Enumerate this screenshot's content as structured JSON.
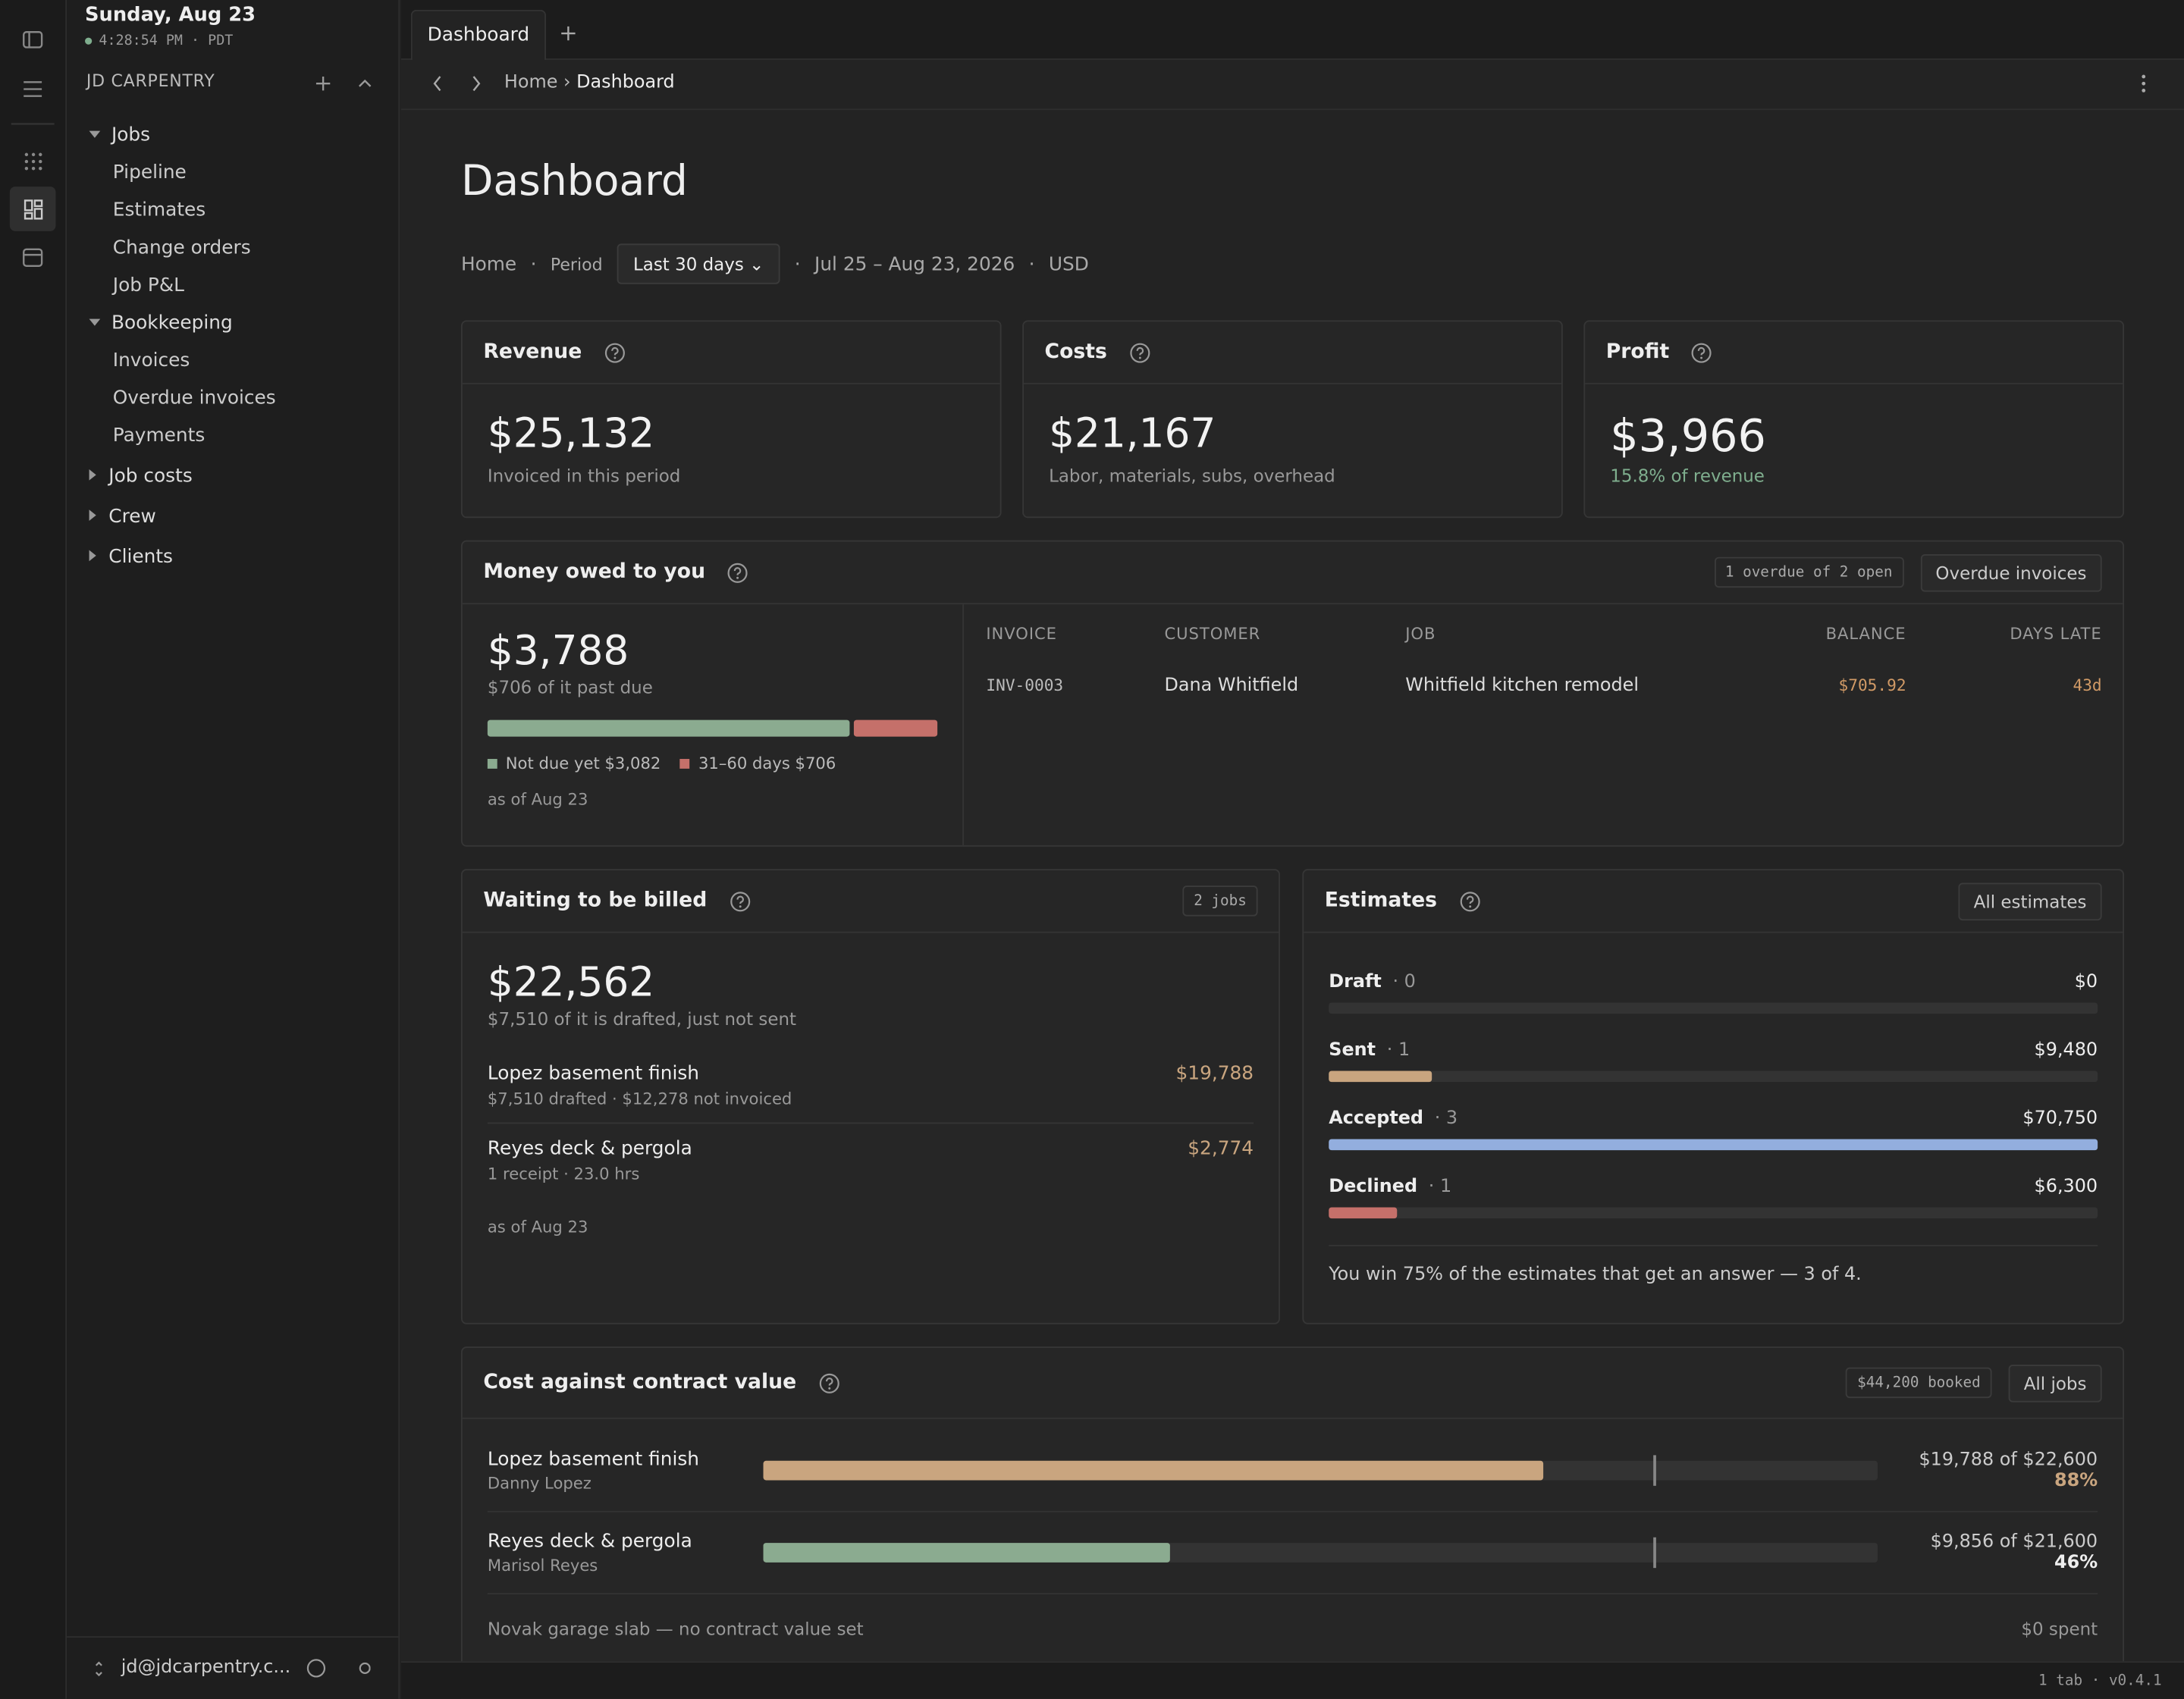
{
  "sidebar": {
    "date": "Sunday, Aug 23",
    "time": "4:28:54 PM · PDT",
    "org": "JD CARPENTRY",
    "tree": [
      {
        "label": "Jobs",
        "children": [
          "Pipeline",
          "Estimates",
          "Change orders",
          "Job P&L"
        ]
      },
      {
        "label": "Bookkeeping",
        "children": [
          "Invoices",
          "Overdue invoices",
          "Payments"
        ]
      },
      {
        "label": "Job costs",
        "children": []
      },
      {
        "label": "Crew",
        "children": []
      },
      {
        "label": "Clients",
        "children": []
      }
    ],
    "user": "jd@jdcarpentry.c..."
  },
  "tabs": [
    "Dashboard"
  ],
  "breadcrumb": {
    "home": "Home",
    "current": "Dashboard"
  },
  "page": {
    "title": "Dashboard",
    "home": "Home",
    "period_label": "Period",
    "period": "Last 30 days",
    "range": "Jul 25 – Aug 23, 2026",
    "currency": "USD"
  },
  "kpis": [
    {
      "title": "Revenue",
      "value": "$25,132",
      "note": "Invoiced in this period"
    },
    {
      "title": "Costs",
      "value": "$21,167",
      "note": "Labor, materials, subs, overhead"
    },
    {
      "title": "Profit",
      "value": "$3,966",
      "note": "15.8% of revenue"
    }
  ],
  "owed": {
    "title": "Money owed to you",
    "badge": "1 overdue of 2 open",
    "button": "Overdue invoices",
    "total": "$3,788",
    "sub": "$706 of it past due",
    "legend": [
      "Not due yet $3,082",
      "31–60 days $706"
    ],
    "asof": "as of Aug 23",
    "columns": [
      "INVOICE",
      "CUSTOMER",
      "JOB",
      "BALANCE",
      "DAYS LATE"
    ],
    "rows": [
      [
        "INV-0003",
        "Dana Whitfield",
        "Whitfield kitchen remodel",
        "$705.92",
        "43d"
      ]
    ]
  },
  "billing": {
    "title": "Waiting to be billed",
    "badge": "2 jobs",
    "total": "$22,562",
    "sub": "$7,510 of it is drafted, just not sent",
    "jobs": [
      {
        "name": "Lopez basement finish",
        "detail": "$7,510 drafted · $12,278 not invoiced",
        "amount": "$19,788"
      },
      {
        "name": "Reyes deck & pergola",
        "detail": "1 receipt · 23.0 hrs",
        "amount": "$2,774"
      }
    ],
    "asof": "as of Aug 23"
  },
  "estimates": {
    "title": "Estimates",
    "button": "All estimates",
    "rows": [
      {
        "label": "Draft",
        "count": "· 0",
        "amount": "$0"
      },
      {
        "label": "Sent",
        "count": "· 1",
        "amount": "$9,480"
      },
      {
        "label": "Accepted",
        "count": "· 3",
        "amount": "$70,750"
      },
      {
        "label": "Declined",
        "count": "· 1",
        "amount": "$6,300"
      }
    ],
    "summary": "You win 75% of the estimates that get an answer — 3 of 4."
  },
  "contract": {
    "title": "Cost against contract value",
    "badge": "$44,200 booked",
    "button": "All jobs",
    "jobs": [
      {
        "name": "Lopez basement finish",
        "client": "Danny Lopez",
        "amount": "$19,788 of $22,600",
        "pct": "88%"
      },
      {
        "name": "Reyes deck & pergola",
        "client": "Marisol Reyes",
        "amount": "$9,856 of $21,600",
        "pct": "46%"
      }
    ],
    "note": "Novak garage slab — no contract value set",
    "note_amount": "$0 spent"
  },
  "status": {
    "tabs": "1 tab",
    "version": "v0.4.1"
  }
}
